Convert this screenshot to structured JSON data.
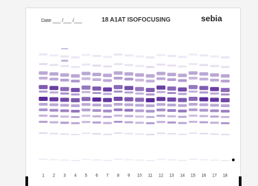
{
  "header": {
    "date": "Date ___ /___ /___",
    "title": "18 A1AT ISOFOCUSING",
    "brand": "sebia"
  },
  "lanes": [
    "1",
    "2",
    "3",
    "4",
    "5",
    "6",
    "7",
    "8",
    "9",
    "10",
    "11",
    "12",
    "13",
    "14",
    "15",
    "16",
    "17",
    "18"
  ]
}
